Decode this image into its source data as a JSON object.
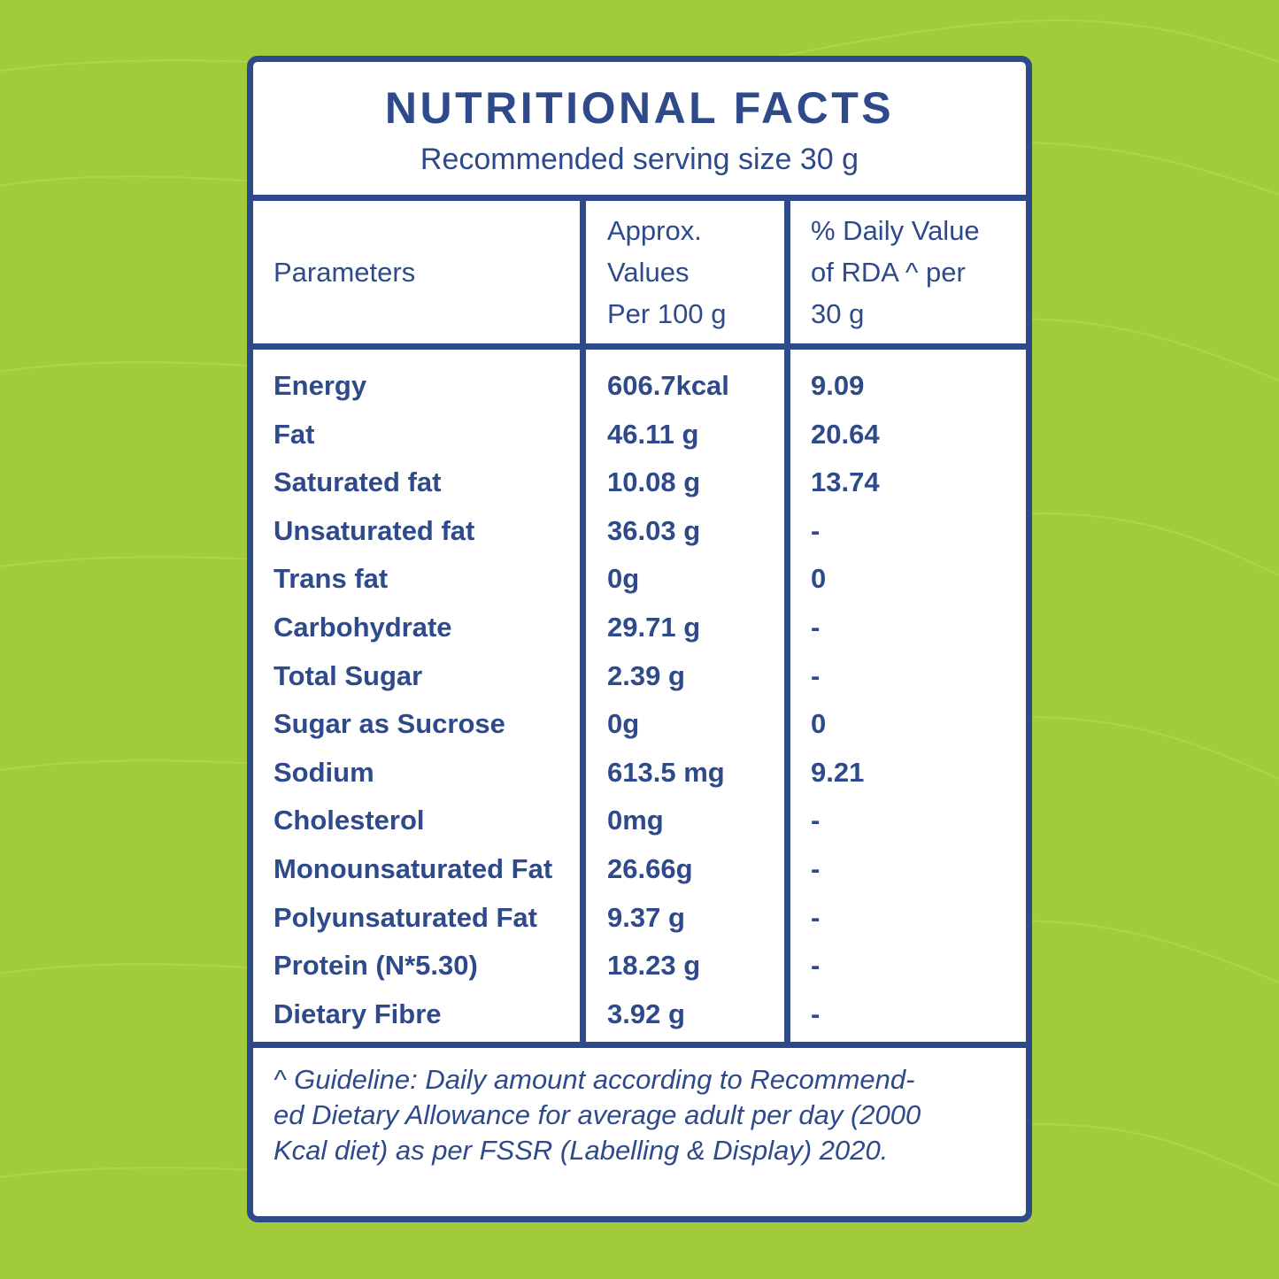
{
  "header": {
    "title": "NUTRITIONAL FACTS",
    "subtitle": "Recommended serving size 30 g"
  },
  "columns": {
    "parameters": "Parameters",
    "approx_values": [
      "Approx.",
      "Values",
      "Per 100 g"
    ],
    "daily_value": [
      "% Daily Value",
      "of RDA ^ per",
      "30 g"
    ]
  },
  "rows": [
    {
      "name": "Energy",
      "per100g": "606.7kcal",
      "dv": "9.09"
    },
    {
      "name": "Fat",
      "per100g": "46.11 g",
      "dv": "20.64"
    },
    {
      "name": "Saturated fat",
      "per100g": "10.08 g",
      "dv": "13.74"
    },
    {
      "name": "Unsaturated fat",
      "per100g": "36.03 g",
      "dv": "-"
    },
    {
      "name": "Trans fat",
      "per100g": "0g",
      "dv": "0"
    },
    {
      "name": "Carbohydrate",
      "per100g": "29.71 g",
      "dv": "-"
    },
    {
      "name": "Total Sugar",
      "per100g": "2.39 g",
      "dv": "-"
    },
    {
      "name": "Sugar as Sucrose",
      "per100g": "0g",
      "dv": "0"
    },
    {
      "name": "Sodium",
      "per100g": "613.5 mg",
      "dv": "9.21"
    },
    {
      "name": "Cholesterol",
      "per100g": "0mg",
      "dv": "-"
    },
    {
      "name": "Monounsaturated Fat",
      "per100g": "26.66g",
      "dv": "-"
    },
    {
      "name": "Polyunsaturated Fat",
      "per100g": "9.37 g",
      "dv": "-"
    },
    {
      "name": "Protein (N*5.30)",
      "per100g": "18.23 g",
      "dv": "-"
    },
    {
      "name": "Dietary Fibre",
      "per100g": "3.92 g",
      "dv": "-"
    }
  ],
  "footnote": [
    "^ Guideline: Daily amount according to Recommend-",
    "ed Dietary Allowance for average adult per day (2000",
    "Kcal diet) as per FSSR (Labelling & Display) 2020."
  ],
  "colors": {
    "background": "#a2cb3b",
    "ink": "#2e4a8b",
    "panel": "#ffffff"
  }
}
